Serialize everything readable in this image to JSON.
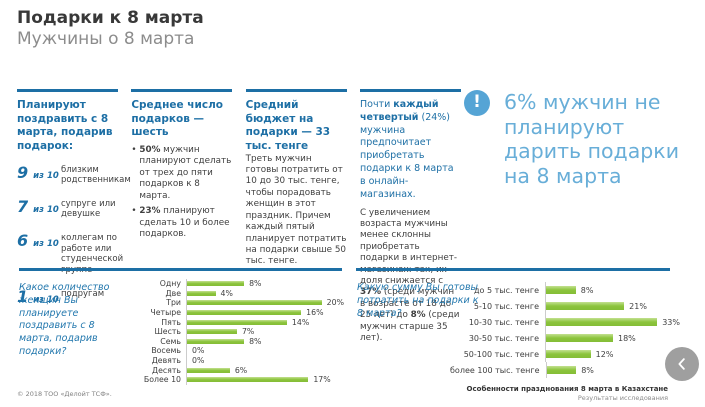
{
  "header": {
    "title": "Подарки к 8 марта",
    "subtitle": "Мужчины о 8 марта"
  },
  "columns": [
    {
      "heading": "Планируют поздравить с 8 марта, подарив подарок:",
      "stats": [
        {
          "num": "9",
          "of": "из 10",
          "label": "близким родственникам"
        },
        {
          "num": "7",
          "of": "из 10",
          "label": "супруге или девушке"
        },
        {
          "num": "6",
          "of": "из 10",
          "label": "коллегам по работе или студенческой группе"
        },
        {
          "num": "1",
          "of": "из 10",
          "label": "подругам"
        }
      ]
    },
    {
      "heading": "Среднее число подарков — шесть",
      "bullets": [
        {
          "bold": "50%",
          "text": " мужчин планируют сделать от трех до пяти подарков к 8 марта."
        },
        {
          "bold": "23%",
          "text": " планируют сделать 10 и более подарков."
        }
      ]
    },
    {
      "heading": "Средний бюджет на подарки — 33 тыс. тенге",
      "text": "Треть мужчин готовы потратить от 10 до 30 тыс. тенге, чтобы порадовать женщин в этот праздник. Причем каждый пятый планирует потратить на подарки свыше 50 тыс. тенге."
    },
    {
      "p1": {
        "pre": "Почти ",
        "bold": "каждый четвертый",
        "post": " (24%) мужчина предпочитает приобретать подарки к 8 марта в онлайн-магазинах."
      },
      "p2": {
        "pre": "С увеличением возраста мужчины менее склонны приобретать подарки в интернет-магазинах: так, их доля снижается с ",
        "bold1": "37%",
        "mid": " (среди мужчин в возрасте от 18 до 25 лет) до ",
        "bold2": "8%",
        "post": " (среди мужчин старше 35 лет)."
      }
    }
  ],
  "highlight": {
    "icon": "exclamation-icon",
    "icon_glyph": "!",
    "text": "6% мужчин не планируют дарить подарки на 8 марта"
  },
  "chart_data": [
    {
      "type": "bar",
      "orientation": "horizontal",
      "question": "Какое количество женщин Вы планируете поздравить с 8 марта, подарив подарки?",
      "categories": [
        "Одну",
        "Две",
        "Три",
        "Четыре",
        "Пять",
        "Шесть",
        "Семь",
        "Восемь",
        "Девять",
        "Десять",
        "Более 10"
      ],
      "values": [
        8,
        4,
        20,
        16,
        14,
        7,
        8,
        0,
        0,
        6,
        17
      ],
      "unit": "%",
      "xlim": [
        0,
        22
      ],
      "bar_color": "#8cc43d",
      "legend": false,
      "grid": false
    },
    {
      "type": "bar",
      "orientation": "horizontal",
      "question": "Какую сумму Вы готовы потратить на подарки к 8 марта?",
      "categories": [
        "до 5 тыс. тенге",
        "5-10 тыс. тенге",
        "10-30 тыс. тенге",
        "30-50 тыс. тенге",
        "50-100 тыс. тенге",
        "более 100 тыс. тенге"
      ],
      "values": [
        8,
        21,
        33,
        18,
        12,
        8
      ],
      "unit": "%",
      "xlim": [
        0,
        36
      ],
      "bar_color": "#8cc43d",
      "legend": false,
      "grid": false
    }
  ],
  "footer": {
    "copyright": "© 2018 ТОО «Делойт ТСФ».",
    "doc_title": "Особенности празднования 8 марта в Казахстане",
    "doc_subtitle": "Результаты исследования"
  },
  "nav": {
    "prev_icon": "chevron-left-icon"
  },
  "colors": {
    "accent_blue": "#1d6fa5",
    "light_blue": "#68aed8",
    "icon_blue": "#55a4d5",
    "bar_green": "#8cc43d",
    "text": "#3f3f3f"
  }
}
